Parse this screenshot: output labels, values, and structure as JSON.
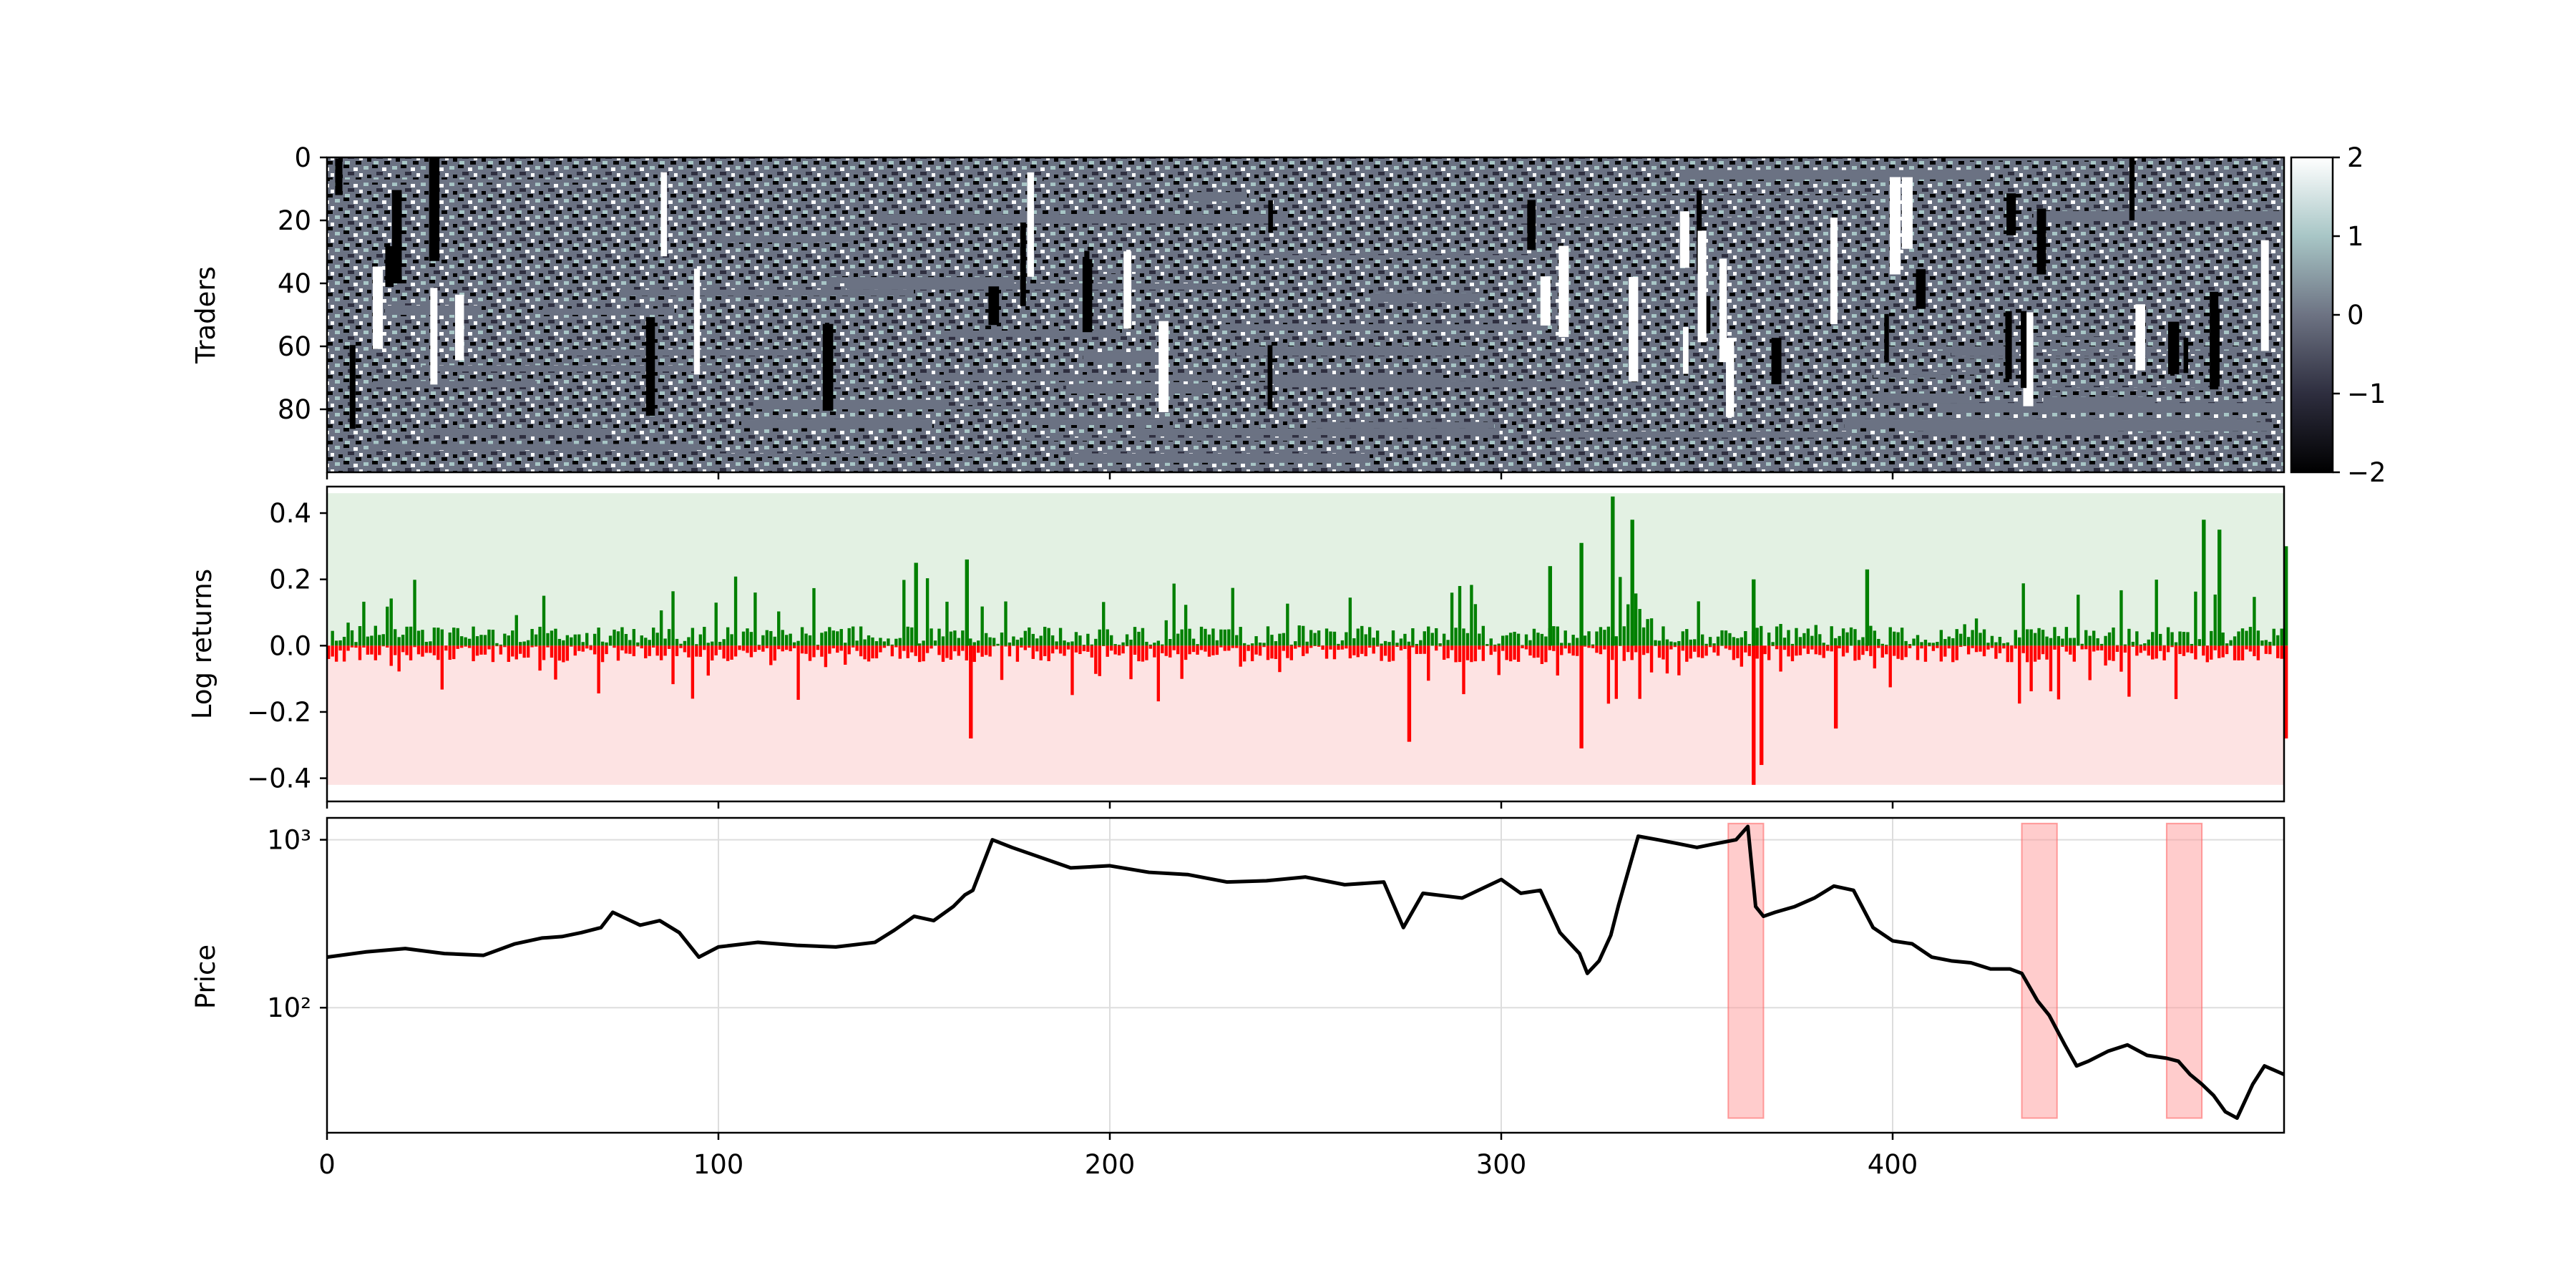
{
  "chart_data": [
    {
      "type": "heatmap",
      "ylabel": "Traders",
      "x_range": [
        0,
        500
      ],
      "y_range": [
        0,
        100
      ],
      "y_inverted": true,
      "yticks": [
        0,
        20,
        40,
        60,
        80
      ],
      "colorbar": {
        "range": [
          -2,
          2
        ],
        "ticks": [
          2,
          1,
          0,
          -1,
          -2
        ],
        "tick_labels": [
          "2",
          "1",
          "0",
          "−1",
          "−2"
        ],
        "colormap": "bone",
        "colors": [
          "#000000",
          "#2e2e3f",
          "#6d7383",
          "#a8c6c6",
          "#ffffff"
        ]
      }
    },
    {
      "type": "bar",
      "ylabel": "Log returns",
      "ylim": [
        -0.47,
        0.48
      ],
      "yticks": [
        0.4,
        0.2,
        0.0,
        -0.2,
        -0.4
      ],
      "ytick_labels": [
        "0.4",
        "0.2",
        "0.0",
        "−0.2",
        "−0.4"
      ],
      "positive_color": "#008000",
      "negative_color": "#ff0000",
      "positive_band": {
        "range": [
          0,
          0.46
        ],
        "color": "#e3f1e3"
      },
      "negative_band": {
        "range": [
          -0.42,
          0
        ],
        "color": "#fde3e3"
      },
      "highlighted_returns": [
        {
          "x": 150,
          "value": 0.25
        },
        {
          "x": 163,
          "value": 0.26
        },
        {
          "x": 164,
          "value": -0.28
        },
        {
          "x": 312,
          "value": 0.24
        },
        {
          "x": 320,
          "value": 0.31
        },
        {
          "x": 320,
          "value": -0.31
        },
        {
          "x": 328,
          "value": 0.45
        },
        {
          "x": 333,
          "value": 0.38
        },
        {
          "x": 276,
          "value": -0.29
        },
        {
          "x": 364,
          "value": -0.42
        },
        {
          "x": 366,
          "value": -0.36
        },
        {
          "x": 364,
          "value": 0.2
        },
        {
          "x": 393,
          "value": 0.23
        },
        {
          "x": 385,
          "value": -0.25
        },
        {
          "x": 479,
          "value": 0.38
        },
        {
          "x": 483,
          "value": 0.35
        },
        {
          "x": 500,
          "value": 0.3
        },
        {
          "x": 500,
          "value": -0.28
        }
      ]
    },
    {
      "type": "line",
      "ylabel": "Price",
      "yscale": "log",
      "ylim": [
        18,
        1350
      ],
      "xlim": [
        0,
        500
      ],
      "xticks": [
        0,
        100,
        200,
        300,
        400
      ],
      "ytick_labels": [
        "10³",
        "10²"
      ],
      "ytick_values": [
        1000,
        100
      ],
      "grid": true,
      "line_color": "#000000",
      "crash_regions": [
        {
          "x0": 358,
          "x1": 367
        },
        {
          "x0": 433,
          "x1": 442
        },
        {
          "x0": 470,
          "x1": 479
        }
      ],
      "crash_color": "#ff9999",
      "series": [
        {
          "x": [
            0,
            10,
            20,
            30,
            40,
            48,
            55,
            60,
            65,
            70,
            73,
            80,
            85,
            90,
            95,
            100,
            110,
            120,
            130,
            140,
            145,
            150,
            155,
            160,
            163,
            165,
            170,
            175,
            180,
            190,
            200,
            210,
            220,
            230,
            240,
            250,
            260,
            270,
            275,
            280,
            290,
            300,
            305,
            310,
            315,
            320,
            322,
            325,
            328,
            330,
            335,
            340,
            345,
            350,
            355,
            360,
            363,
            365,
            367,
            370,
            375,
            380,
            385,
            390,
            395,
            400,
            405,
            410,
            415,
            420,
            425,
            430,
            433,
            437,
            440,
            444,
            447,
            450,
            455,
            460,
            465,
            470,
            473,
            476,
            479,
            482,
            485,
            488,
            492,
            495,
            500
          ],
          "y": [
            200,
            215,
            225,
            210,
            205,
            240,
            260,
            265,
            280,
            300,
            370,
            310,
            330,
            280,
            200,
            230,
            245,
            235,
            230,
            245,
            290,
            350,
            330,
            400,
            470,
            500,
            1000,
            900,
            820,
            680,
            700,
            640,
            620,
            560,
            570,
            600,
            540,
            560,
            300,
            480,
            450,
            580,
            480,
            500,
            280,
            210,
            160,
            190,
            270,
            410,
            1050,
            1000,
            950,
            900,
            950,
            1000,
            1200,
            400,
            350,
            370,
            400,
            450,
            530,
            500,
            300,
            250,
            240,
            200,
            190,
            185,
            170,
            170,
            160,
            110,
            90,
            60,
            45,
            48,
            55,
            60,
            52,
            50,
            48,
            40,
            35,
            30,
            24,
            22,
            35,
            45,
            40
          ]
        }
      ]
    }
  ]
}
